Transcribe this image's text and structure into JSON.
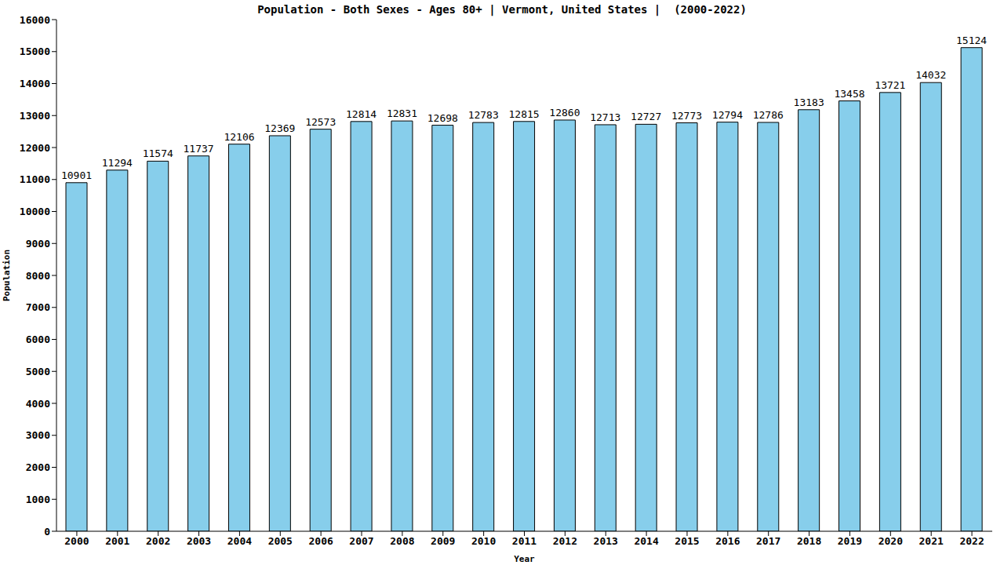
{
  "chart_data": {
    "type": "bar",
    "title": "Population - Both Sexes - Ages 80+ | Vermont, United States |  (2000-2022)",
    "x_label": "Year",
    "y_label": "Population",
    "categories": [
      "2000",
      "2001",
      "2002",
      "2003",
      "2004",
      "2005",
      "2006",
      "2007",
      "2008",
      "2009",
      "2010",
      "2011",
      "2012",
      "2013",
      "2014",
      "2015",
      "2016",
      "2017",
      "2018",
      "2019",
      "2020",
      "2021",
      "2022"
    ],
    "values": [
      10901,
      11294,
      11574,
      11737,
      12106,
      12369,
      12573,
      12814,
      12831,
      12698,
      12783,
      12815,
      12860,
      12713,
      12727,
      12773,
      12794,
      12786,
      13183,
      13458,
      13721,
      14032,
      15124
    ],
    "color": "#87ceeb",
    "ylim": [
      0,
      16000
    ],
    "yticks": [
      0,
      1000,
      2000,
      3000,
      4000,
      5000,
      6000,
      7000,
      8000,
      9000,
      10000,
      11000,
      12000,
      13000,
      14000,
      15000,
      16000
    ],
    "grid": false,
    "data_labels": true
  }
}
